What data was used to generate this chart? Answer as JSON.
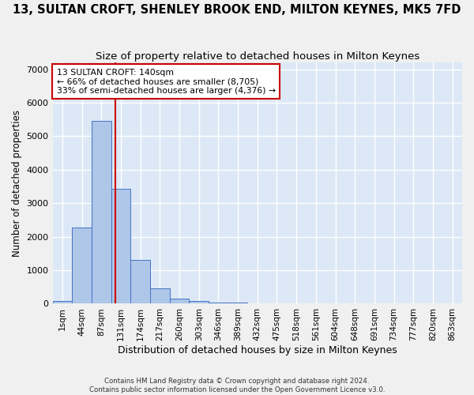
{
  "title": "13, SULTAN CROFT, SHENLEY BROOK END, MILTON KEYNES, MK5 7FD",
  "subtitle": "Size of property relative to detached houses in Milton Keynes",
  "xlabel": "Distribution of detached houses by size in Milton Keynes",
  "ylabel": "Number of detached properties",
  "bin_labels": [
    "1sqm",
    "44sqm",
    "87sqm",
    "131sqm",
    "174sqm",
    "217sqm",
    "260sqm",
    "303sqm",
    "346sqm",
    "389sqm",
    "432sqm",
    "475sqm",
    "518sqm",
    "561sqm",
    "604sqm",
    "648sqm",
    "691sqm",
    "734sqm",
    "777sqm",
    "820sqm",
    "863sqm"
  ],
  "bar_values": [
    80,
    2270,
    5470,
    3440,
    1310,
    460,
    145,
    85,
    45,
    30,
    5,
    0,
    0,
    0,
    0,
    0,
    0,
    0,
    0,
    0,
    0
  ],
  "bar_color": "#aec6e8",
  "bar_edge_color": "#4472c4",
  "vline_color": "#cc0000",
  "ylim": [
    0,
    7200
  ],
  "yticks": [
    0,
    1000,
    2000,
    3000,
    4000,
    5000,
    6000,
    7000
  ],
  "annotation_text": "13 SULTAN CROFT: 140sqm\n← 66% of detached houses are smaller (8,705)\n33% of semi-detached houses are larger (4,376) →",
  "annotation_box_color": "#ffffff",
  "annotation_box_edge": "#cc0000",
  "footer_line1": "Contains HM Land Registry data © Crown copyright and database right 2024.",
  "footer_line2": "Contains public sector information licensed under the Open Government Licence v3.0.",
  "background_color": "#dce8f5",
  "grid_color": "#ffffff",
  "title_fontsize": 10.5,
  "subtitle_fontsize": 9.5,
  "tick_fontsize": 7.5,
  "vline_pos": 3.21
}
